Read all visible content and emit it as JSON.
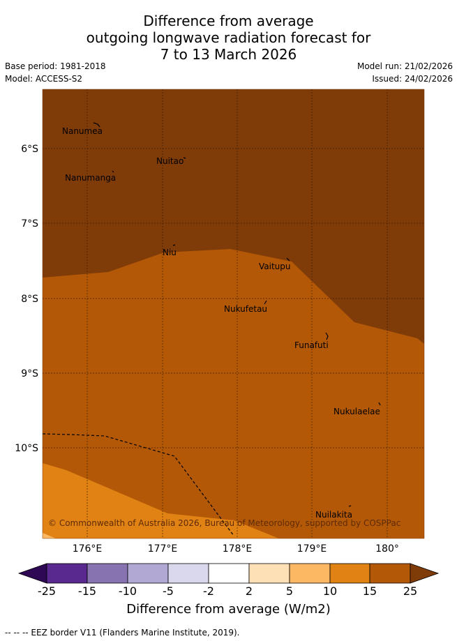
{
  "title": {
    "line1": "Difference from average",
    "line2": "outgoing longwave radiation forecast for",
    "line3": "7 to 13 March 2026"
  },
  "meta": {
    "base_period": "Base period: 1981-2018",
    "model": "Model: ACCESS-S2",
    "model_run": "Model run: 21/02/2026",
    "issued": "Issued: 24/02/2026"
  },
  "map": {
    "lat_labels": [
      "6°S",
      "7°S",
      "8°S",
      "9°S",
      "10°S"
    ],
    "lon_labels": [
      "176°E",
      "177°E",
      "178°E",
      "179°E",
      "180°"
    ],
    "places": [
      {
        "name": "Nanumea"
      },
      {
        "name": "Nuitao"
      },
      {
        "name": "Nanumanga"
      },
      {
        "name": "Niu"
      },
      {
        "name": "Vaitupu"
      },
      {
        "name": "Nukufetau"
      },
      {
        "name": "Funafuti"
      },
      {
        "name": "Nukulaelae"
      },
      {
        "name": "Nuilakita"
      }
    ],
    "copyright": "© Commonwealth of Australia 2026, Bureau of Meteorology, supported by COSPPac"
  },
  "colorbar": {
    "title": "Difference from average (W/m2)",
    "ticks": [
      "-25",
      "-15",
      "-10",
      "-5",
      "-2",
      "2",
      "5",
      "10",
      "15",
      "25"
    ],
    "colors": [
      "#2e0854",
      "#5a2990",
      "#8773b0",
      "#b1a8d4",
      "#d9d8ec",
      "#ffffff",
      "#fde0b6",
      "#fdb863",
      "#e08214",
      "#b35806",
      "#7f3b08"
    ]
  },
  "footnote": "-- -- -- EEZ border V11 (Flanders Marine Institute, 2019)."
}
